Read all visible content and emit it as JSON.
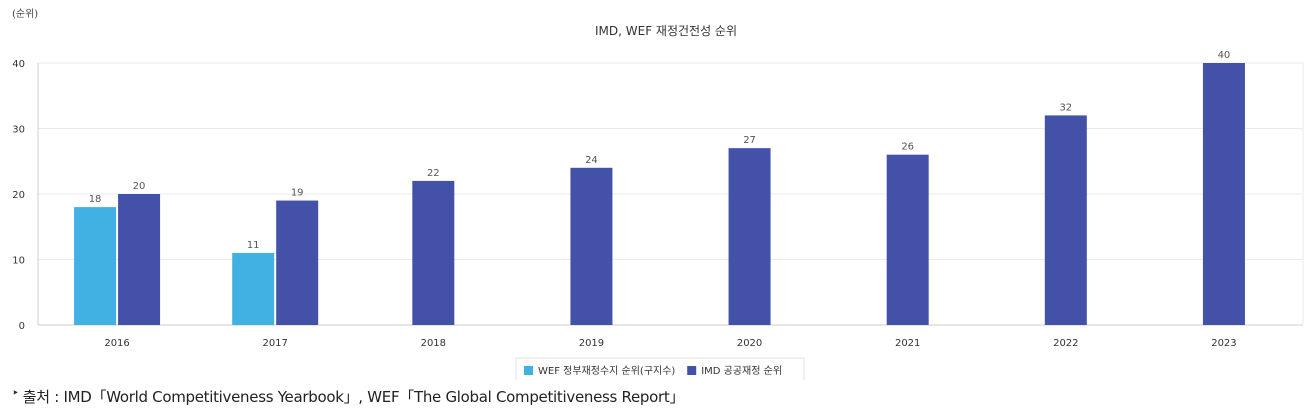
{
  "source": {
    "marker": "‣",
    "text": "출처 : IMD「World Competitiveness Yearbook」, WEF「The Global Competitiveness Report」"
  },
  "chart_data": {
    "type": "bar",
    "title": "IMD, WEF 재정건전성 순위",
    "unit_label": "(순위)",
    "xlabel": "",
    "ylabel": "",
    "categories": [
      "2016",
      "2017",
      "2018",
      "2019",
      "2020",
      "2021",
      "2022",
      "2023"
    ],
    "series": [
      {
        "name": "WEF 정부재정수지 순위(구지수)",
        "color": "#41b1e3",
        "values": [
          18,
          11,
          null,
          null,
          null,
          null,
          null,
          null
        ]
      },
      {
        "name": "IMD 공공재정 순위",
        "color": "#4352a8",
        "values": [
          20,
          19,
          22,
          24,
          27,
          26,
          32,
          40
        ]
      }
    ],
    "ylim": [
      0,
      40
    ],
    "yticks": [
      0,
      10,
      20,
      30,
      40
    ],
    "grid": true,
    "legend_position": "bottom"
  }
}
